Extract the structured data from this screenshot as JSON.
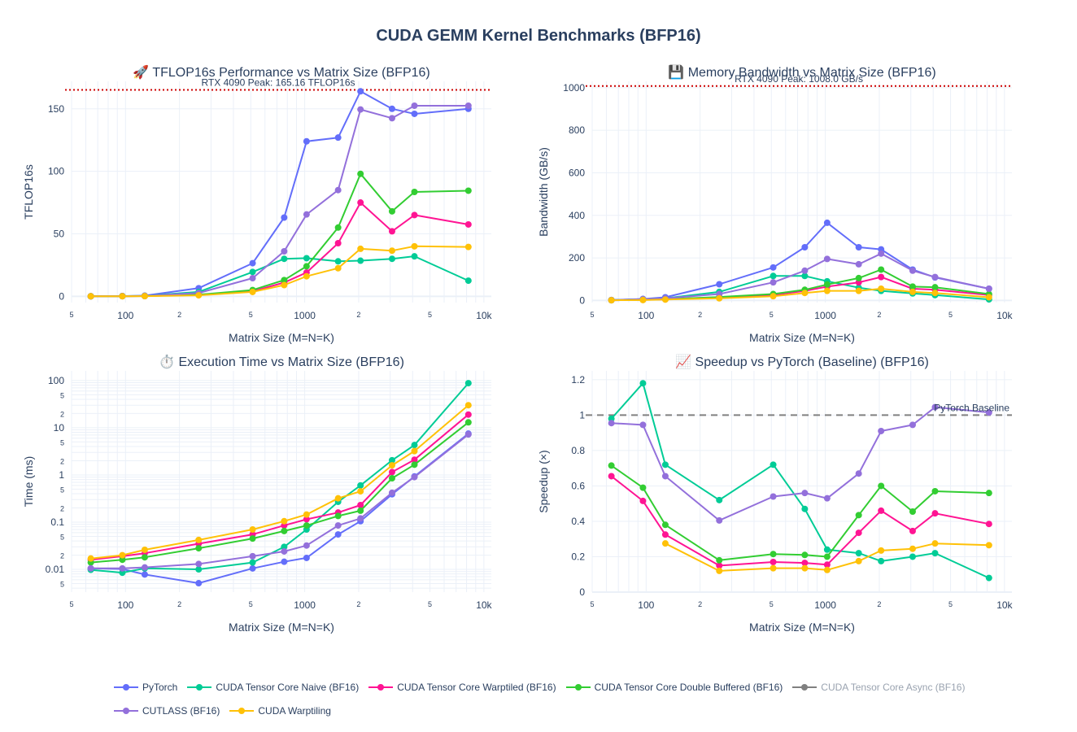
{
  "page_title": "CUDA GEMM Kernel Benchmarks (BFP16)",
  "series_styles": [
    {
      "name": "PyTorch",
      "color": "#636efa"
    },
    {
      "name": "CUDA Tensor Core Naive (BF16)",
      "color": "#00cc96"
    },
    {
      "name": "CUDA Tensor Core Warptiled (BF16)",
      "color": "#ff1493"
    },
    {
      "name": "CUDA Tensor Core Double Buffered (BF16)",
      "color": "#32cd32"
    },
    {
      "name": "CUDA Tensor Core Async (BF16)",
      "color": "#808080",
      "hidden": true
    },
    {
      "name": "CUTLASS (BF16)",
      "color": "#9370db"
    },
    {
      "name": "CUDA Warptiling",
      "color": "#ffc107"
    }
  ],
  "chart_data": [
    {
      "type": "line",
      "title": "🚀 TFLOP16s Performance vs Matrix Size (BFP16)",
      "xlabel": "Matrix Size (M=N=K)",
      "ylabel": "TFLOP16s",
      "xscale": "log",
      "yscale": "linear",
      "xlim": [
        50,
        11000
      ],
      "ylim": [
        -5,
        172
      ],
      "yticks": [
        0,
        50,
        100,
        150
      ],
      "reference_line": {
        "y": 165.16,
        "label": "RTX 4090 Peak: 165.16 TFLOP16s",
        "color": "#cc0000",
        "style": "dotted"
      },
      "x": [
        64,
        96,
        128,
        256,
        512,
        768,
        1024,
        1536,
        2048,
        3072,
        4096,
        8192
      ],
      "series": [
        {
          "name": "PyTorch",
          "values": [
            0.05,
            0.17,
            0.5,
            6.5,
            26.5,
            63,
            124,
            127,
            164,
            150,
            146,
            150
          ]
        },
        {
          "name": "CUDA Tensor Core Naive (BF16)",
          "values": [
            0.05,
            0.2,
            0.4,
            3.5,
            19.5,
            30,
            30.5,
            28,
            28.5,
            30,
            32,
            12.5
          ]
        },
        {
          "name": "CUDA Tensor Core Warptiled (BF16)",
          "values": [
            0.03,
            0.09,
            0.2,
            1.2,
            4,
            11,
            19,
            42.5,
            75,
            52,
            65,
            57.5
          ]
        },
        {
          "name": "CUDA Tensor Core Double Buffered (BF16)",
          "values": [
            0.04,
            0.1,
            0.2,
            1.3,
            5,
            13,
            24,
            55,
            98,
            68,
            83.5,
            84.5
          ]
        },
        {
          "name": "CUTLASS (BF16)",
          "values": [
            0.05,
            0.17,
            0.35,
            2.6,
            14.5,
            36,
            65.5,
            85,
            149.5,
            142.5,
            152.5,
            152.5
          ]
        },
        {
          "name": "CUDA Warptiling",
          "values": [
            0.02,
            0.06,
            0.15,
            0.8,
            3.5,
            9,
            16,
            22.5,
            38,
            36.5,
            40,
            39.5
          ]
        }
      ]
    },
    {
      "type": "line",
      "title": "💾 Memory Bandwidth vs Matrix Size (BFP16)",
      "xlabel": "Matrix Size (M=N=K)",
      "ylabel": "Bandwidth (GB/s)",
      "xscale": "log",
      "yscale": "linear",
      "xlim": [
        50,
        11000
      ],
      "ylim": [
        -10,
        1030
      ],
      "yticks": [
        0,
        200,
        400,
        600,
        800,
        1000
      ],
      "reference_line": {
        "y": 1008.0,
        "label": "RTX 4090 Peak: 1008.0 GB/s",
        "color": "#cc0000",
        "style": "dotted"
      },
      "x": [
        64,
        96,
        128,
        256,
        512,
        768,
        1024,
        1536,
        2048,
        3072,
        4096,
        8192
      ],
      "series": [
        {
          "name": "PyTorch",
          "values": [
            2,
            7,
            15,
            76,
            155,
            250,
            365,
            250,
            240,
            145,
            108,
            55
          ]
        },
        {
          "name": "CUDA Tensor Core Naive (BF16)",
          "values": [
            2,
            6,
            10,
            40,
            115,
            115,
            90,
            60,
            45,
            33,
            25,
            5
          ]
        },
        {
          "name": "CUDA Tensor Core Warptiled (BF16)",
          "values": [
            1,
            3,
            5,
            15,
            25,
            45,
            65,
            85,
            110,
            55,
            50,
            25
          ]
        },
        {
          "name": "CUDA Tensor Core Double Buffered (BF16)",
          "values": [
            1,
            3,
            6,
            16,
            30,
            50,
            75,
            105,
            145,
            65,
            62,
            30
          ]
        },
        {
          "name": "CUTLASS (BF16)",
          "values": [
            2,
            6,
            10,
            30,
            85,
            140,
            195,
            170,
            220,
            140,
            110,
            55
          ]
        },
        {
          "name": "CUDA Warptiling",
          "values": [
            1,
            2,
            4,
            10,
            20,
            35,
            45,
            45,
            55,
            40,
            35,
            15
          ]
        }
      ]
    },
    {
      "type": "line",
      "title": "⏱️ Execution Time vs Matrix Size (BFP16)",
      "xlabel": "Matrix Size (M=N=K)",
      "ylabel": "Time (ms)",
      "xscale": "log",
      "yscale": "log",
      "xlim": [
        50,
        11000
      ],
      "ylim": [
        0.0033,
        160
      ],
      "ytick_labels": [
        {
          "v": 0.005,
          "t": "5"
        },
        {
          "v": 0.01,
          "t": "0.01"
        },
        {
          "v": 0.02,
          "t": "2"
        },
        {
          "v": 0.05,
          "t": "5"
        },
        {
          "v": 0.1,
          "t": "0.1"
        },
        {
          "v": 0.2,
          "t": "2"
        },
        {
          "v": 0.5,
          "t": "5"
        },
        {
          "v": 1,
          "t": "1"
        },
        {
          "v": 2,
          "t": "2"
        },
        {
          "v": 5,
          "t": "5"
        },
        {
          "v": 10,
          "t": "10"
        },
        {
          "v": 20,
          "t": "2"
        },
        {
          "v": 50,
          "t": "5"
        },
        {
          "v": 100,
          "t": "100"
        }
      ],
      "x": [
        64,
        96,
        128,
        256,
        512,
        768,
        1024,
        1536,
        2048,
        3072,
        4096,
        8192
      ],
      "series": [
        {
          "name": "PyTorch",
          "values": [
            0.0105,
            0.0102,
            0.0078,
            0.0051,
            0.0105,
            0.0145,
            0.0175,
            0.055,
            0.105,
            0.39,
            0.93,
            7.5
          ]
        },
        {
          "name": "CUDA Tensor Core Naive (BF16)",
          "values": [
            0.0098,
            0.0085,
            0.0105,
            0.01,
            0.014,
            0.03,
            0.07,
            0.27,
            0.6,
            2.05,
            4.3,
            88
          ]
        },
        {
          "name": "CUDA Tensor Core Warptiled (BF16)",
          "values": [
            0.016,
            0.019,
            0.022,
            0.035,
            0.055,
            0.085,
            0.115,
            0.16,
            0.23,
            1.15,
            2.1,
            19
          ]
        },
        {
          "name": "CUDA Tensor Core Double Buffered (BF16)",
          "values": [
            0.014,
            0.016,
            0.018,
            0.028,
            0.045,
            0.065,
            0.085,
            0.135,
            0.175,
            0.85,
            1.65,
            13
          ]
        },
        {
          "name": "CUTLASS (BF16)",
          "values": [
            0.0105,
            0.0105,
            0.011,
            0.013,
            0.019,
            0.024,
            0.032,
            0.085,
            0.12,
            0.42,
            0.9,
            7.2
          ]
        },
        {
          "name": "CUDA Warptiling",
          "values": [
            0.017,
            0.02,
            0.026,
            0.042,
            0.07,
            0.105,
            0.145,
            0.32,
            0.45,
            1.6,
            3.2,
            30
          ]
        }
      ]
    },
    {
      "type": "line",
      "title": "📈 Speedup vs PyTorch (Baseline) (BFP16)",
      "xlabel": "Matrix Size (M=N=K)",
      "ylabel": "Speedup (×)",
      "xscale": "log",
      "yscale": "linear",
      "xlim": [
        50,
        11000
      ],
      "ylim": [
        0,
        1.25
      ],
      "yticks": [
        0,
        0.2,
        0.4,
        0.6,
        0.8,
        1,
        1.2
      ],
      "reference_line": {
        "y": 1.0,
        "label": "PyTorch Baseline",
        "color": "#808080",
        "style": "dashed"
      },
      "x": [
        64,
        96,
        128,
        256,
        512,
        768,
        1024,
        1536,
        2048,
        3072,
        4096,
        8192
      ],
      "series": [
        {
          "name": "CUDA Tensor Core Naive (BF16)",
          "values": [
            0.98,
            1.18,
            0.72,
            0.52,
            0.72,
            0.47,
            0.24,
            0.22,
            0.175,
            0.2,
            0.22,
            0.08
          ]
        },
        {
          "name": "CUDA Tensor Core Warptiled (BF16)",
          "values": [
            0.655,
            0.515,
            0.325,
            0.15,
            0.17,
            0.165,
            0.155,
            0.335,
            0.46,
            0.345,
            0.445,
            0.385
          ]
        },
        {
          "name": "CUDA Tensor Core Double Buffered (BF16)",
          "values": [
            0.715,
            0.59,
            0.38,
            0.18,
            0.215,
            0.21,
            0.2,
            0.435,
            0.6,
            0.455,
            0.57,
            0.56
          ]
        },
        {
          "name": "CUTLASS (BF16)",
          "values": [
            0.955,
            0.945,
            0.655,
            0.405,
            0.54,
            0.56,
            0.53,
            0.67,
            0.91,
            0.945,
            1.045,
            1.015
          ]
        },
        {
          "name": "CUDA Warptiling",
          "values": [
            null,
            null,
            0.275,
            0.12,
            0.135,
            0.135,
            0.125,
            0.175,
            0.235,
            0.245,
            0.275,
            0.265
          ]
        }
      ]
    }
  ],
  "legend": {
    "rows": [
      [
        "PyTorch",
        "CUDA Tensor Core Naive (BF16)",
        "CUDA Tensor Core Warptiled (BF16)",
        "CUDA Tensor Core Double Buffered (BF16)",
        "CUDA Tensor Core Async (BF16)"
      ],
      [
        "CUTLASS (BF16)",
        "CUDA Warptiling"
      ]
    ]
  }
}
